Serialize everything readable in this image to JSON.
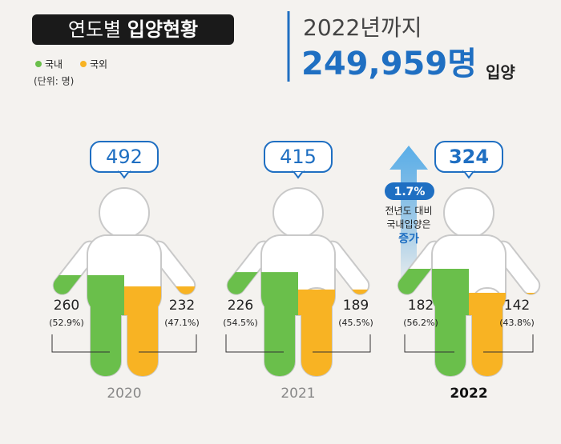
{
  "chart_data": {
    "type": "pictograph",
    "title": "연도별",
    "title_emphasis": "입양현황",
    "unit": "(단위: 명)",
    "headline": "2022년까지",
    "cumulative": "249,959명",
    "cumulative_suffix": "입양",
    "categories": [
      "2020",
      "2021",
      "2022"
    ],
    "totals": [
      492,
      415,
      324
    ],
    "series": [
      {
        "name": "국내",
        "color": "#6abf4b",
        "values": [
          260,
          226,
          182
        ],
        "shares": [
          52.9,
          54.5,
          56.2
        ],
        "share_labels": [
          "(52.9%)",
          "(54.5%)",
          "(56.2%)"
        ]
      },
      {
        "name": "국외",
        "color": "#f8b323",
        "values": [
          232,
          189,
          142
        ],
        "shares": [
          47.1,
          45.5,
          43.8
        ],
        "share_labels": [
          "(47.1%)",
          "(45.5%)",
          "(43.8%)"
        ]
      }
    ],
    "callout": {
      "value": "1.7%",
      "lines": [
        "전년도 대비",
        "국내입양은"
      ],
      "emphasis": "증가"
    }
  }
}
